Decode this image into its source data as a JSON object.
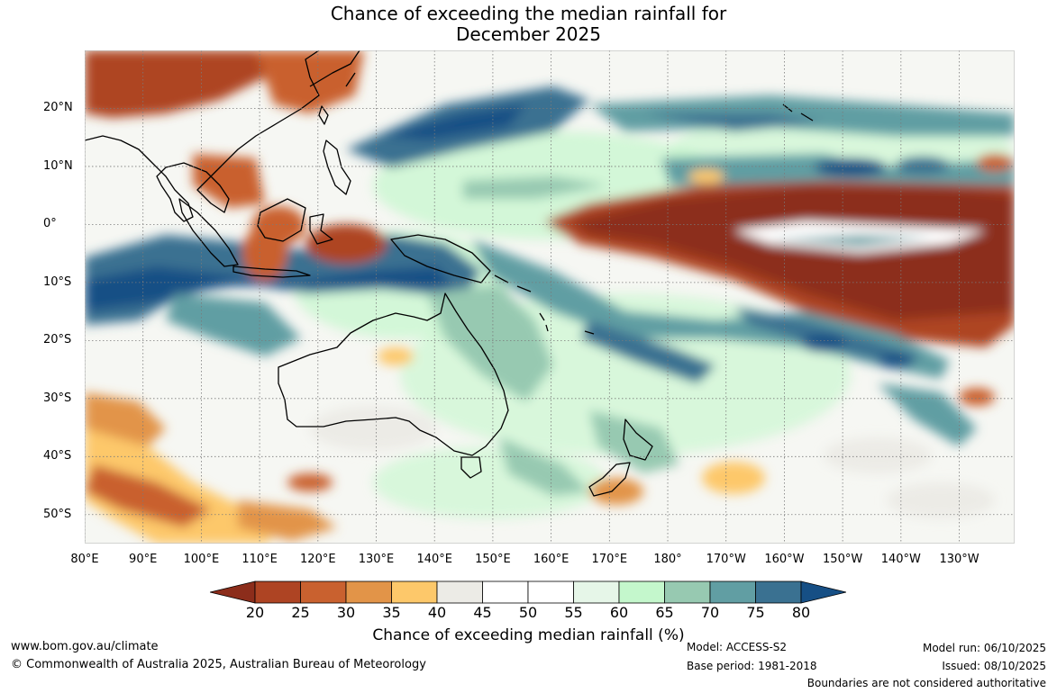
{
  "title": {
    "line1": "Chance of exceeding the median rainfall for",
    "line2": "December 2025"
  },
  "map": {
    "lat_labels": [
      "20°N",
      "10°N",
      "0°",
      "10°S",
      "20°S",
      "30°S",
      "40°S",
      "50°S"
    ],
    "lon_labels": [
      "80°E",
      "90°E",
      "100°E",
      "110°E",
      "120°E",
      "130°E",
      "140°E",
      "150°E",
      "160°E",
      "170°E",
      "180°",
      "170°W",
      "160°W",
      "150°W",
      "140°W",
      "130°W"
    ],
    "lat_values": [
      20,
      10,
      0,
      -10,
      -20,
      -30,
      -40,
      -50
    ],
    "lon_values": [
      80,
      90,
      100,
      110,
      120,
      130,
      140,
      150,
      160,
      170,
      180,
      190,
      200,
      210,
      220,
      230
    ],
    "extent": {
      "lon_min": 80,
      "lon_max": 239.5,
      "lat_min": -55,
      "lat_max": 30
    }
  },
  "colorbar": {
    "ticks": [
      "20",
      "25",
      "30",
      "35",
      "40",
      "45",
      "50",
      "55",
      "60",
      "65",
      "70",
      "75",
      "80"
    ],
    "colors": [
      "#8c2d1b",
      "#ae4423",
      "#c9612f",
      "#e29448",
      "#fdc86a",
      "#ecebe6",
      "#ffffff",
      "#ffffff",
      "#e6f6e8",
      "#c4f7cc",
      "#97c9b1",
      "#619ea3",
      "#3a7191",
      "#164f85"
    ],
    "label": "Chance of exceeding median rainfall (%)"
  },
  "footer": {
    "website": "www.bom.gov.au/climate",
    "copyright": "© Commonwealth of Australia 2025, Australian Bureau of Meteorology",
    "model": "Model: ACCESS-S2",
    "base_period": "Base period: 1981-2018",
    "model_run": "Model run: 06/10/2025",
    "issued": "Issued: 08/10/2025",
    "disclaimer": "Boundaries are not considered authoritative"
  }
}
